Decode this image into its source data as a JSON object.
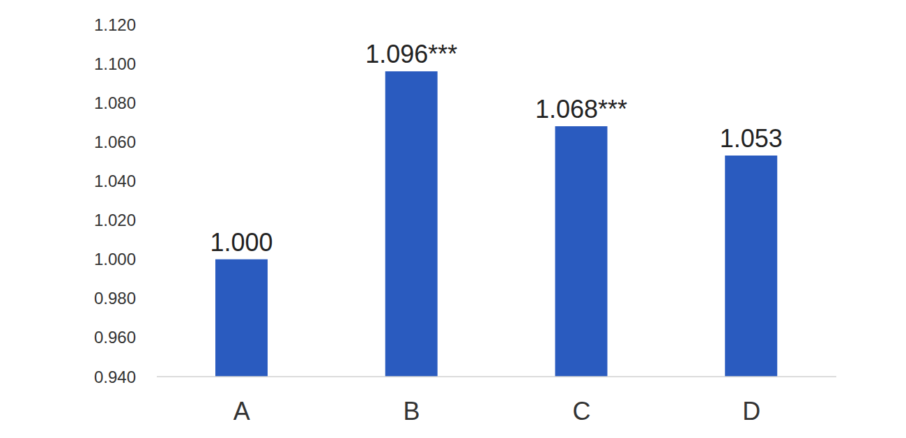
{
  "chart_data": {
    "type": "bar",
    "categories": [
      "A",
      "B",
      "C",
      "D"
    ],
    "values": [
      1.0,
      1.096,
      1.068,
      1.053
    ],
    "value_labels": [
      "1.000",
      "1.096***",
      "1.068***",
      "1.053"
    ],
    "color": "#2a5bbf",
    "ylim": [
      0.94,
      1.12
    ],
    "yticks": [
      {
        "value": 0.94,
        "label": "0.940"
      },
      {
        "value": 0.96,
        "label": "0.960"
      },
      {
        "value": 0.98,
        "label": "0.980"
      },
      {
        "value": 1.0,
        "label": "1.000"
      },
      {
        "value": 1.02,
        "label": "1.020"
      },
      {
        "value": 1.04,
        "label": "1.040"
      },
      {
        "value": 1.06,
        "label": "1.060"
      },
      {
        "value": 1.08,
        "label": "1.080"
      },
      {
        "value": 1.1,
        "label": "1.100"
      },
      {
        "value": 1.12,
        "label": "1.120"
      }
    ],
    "grid": false,
    "data_labels": true
  }
}
